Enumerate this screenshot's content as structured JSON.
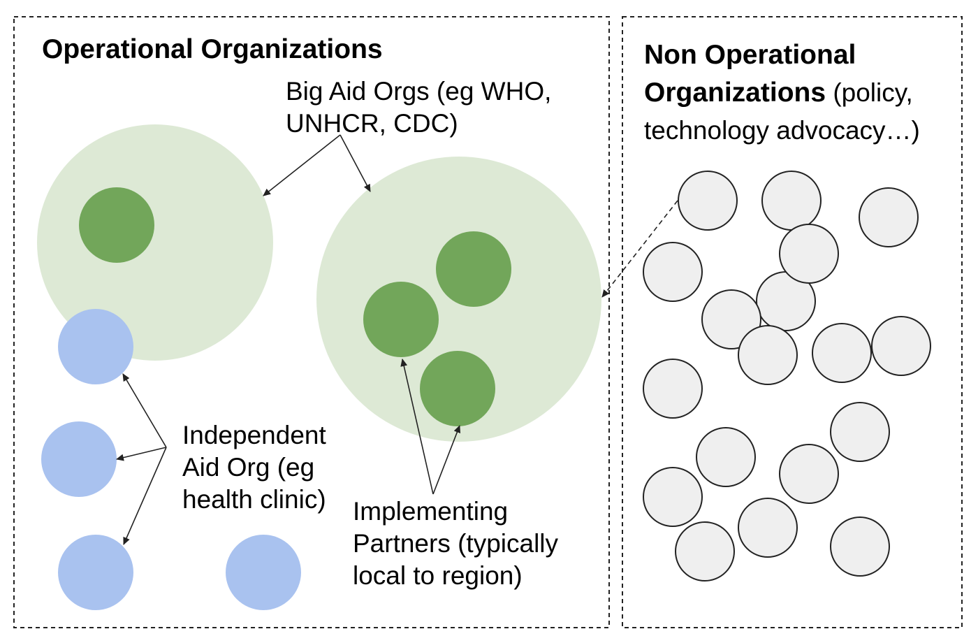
{
  "operational": {
    "title": "Operational Organizations",
    "big_aid_label": [
      "Big Aid Orgs (eg WHO,",
      "UNHCR, CDC)"
    ],
    "independent_label": [
      "Independent",
      "Aid Org (eg",
      "health clinic)"
    ],
    "implementing_label": [
      "Implementing",
      "Partners (typically",
      "local to region)"
    ]
  },
  "non_operational": {
    "title_line1": "Non Operational",
    "title_line2_bold": "Organizations",
    "title_line2_rest": " (policy,",
    "title_line3": "technology advocacy…)"
  },
  "colors": {
    "big_org_fill": "#dde9d5",
    "partner_fill": "#72a65a",
    "independent_fill": "#a9c2ef",
    "non_operational_fill": "#efefef",
    "non_operational_stroke": "#222222",
    "border": "#222222"
  }
}
